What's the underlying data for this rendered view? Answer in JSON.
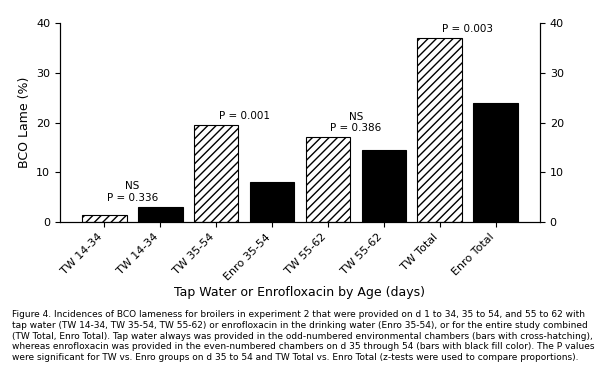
{
  "chart_data": {
    "type": "bar",
    "categories": [
      "TW 14-34",
      "TW 14-34",
      "TW 35-54",
      "Enro 35-54",
      "TW 55-62",
      "TW 55-62",
      "TW Total",
      "Enro Total"
    ],
    "values": [
      1.5,
      3.0,
      19.5,
      8.0,
      17.0,
      14.5,
      37.0,
      24.0
    ],
    "colors": [
      "#ffffff",
      "#000000",
      "#ffffff",
      "#000000",
      "#ffffff",
      "#000000",
      "#ffffff",
      "#000000"
    ],
    "ylabel": "BCO Lame (%)",
    "xlabel": "Tap Water or Enrofloxacin by Age (days)",
    "ylim": [
      0,
      40
    ],
    "yticks": [
      0,
      10,
      20,
      30,
      40
    ],
    "y2lim": [
      0,
      40
    ],
    "y2ticks": [
      0,
      10,
      20,
      30,
      40
    ],
    "annotations": [
      {
        "text": "NS\nP = 0.336",
        "bars": [
          0,
          1
        ]
      },
      {
        "text": "P = 0.001",
        "bars": [
          2,
          3
        ]
      },
      {
        "text": "NS\nP = 0.386",
        "bars": [
          4,
          5
        ]
      },
      {
        "text": "P = 0.003",
        "bars": [
          6,
          7
        ]
      }
    ],
    "caption": "Figure 4. Incidences of BCO lameness for broilers in experiment 2 that were provided on d 1 to 34, 35 to 54, and 55 to 62 with tap water (TW 14-34, TW 35-54, TW 55-62) or enrofloxacin in the drinking water (Enro 35-54), or for the entire study combined (TW Total, Enro Total). Tap water always was provided in the odd-numbered environmental chambers (bars with cross-hatching), whereas enrofloxacin was provided in the even-numbered chambers on d 35 through 54 (bars with black fill color). The P values were significant for TW vs. Enro groups on d 35 to 54 and TW Total vs. Enro Total (z-tests were used to compare proportions)."
  }
}
